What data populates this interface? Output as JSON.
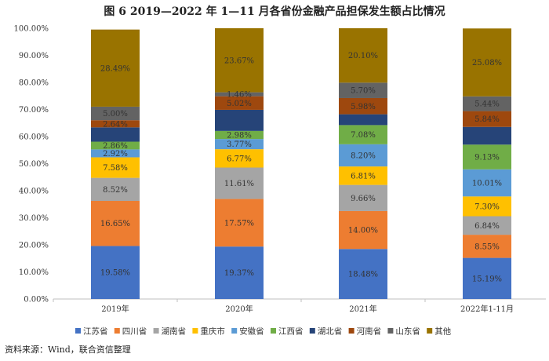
{
  "source": "资料来源：Wind，联合资信整理",
  "chart_data": {
    "type": "bar",
    "stacked": true,
    "title": "图 6   2019—2022 年 1—11 月各省份金融产品担保发生额占比情况",
    "categories": [
      "2019年",
      "2020年",
      "2021年",
      "2022年1-11月"
    ],
    "ylim": [
      0,
      100
    ],
    "yticks": [
      "0.00%",
      "10.00%",
      "20.00%",
      "30.00%",
      "40.00%",
      "50.00%",
      "60.00%",
      "70.00%",
      "80.00%",
      "90.00%",
      "100.00%"
    ],
    "grid": false,
    "legend": "bottom",
    "series": [
      {
        "name": "江苏省",
        "color": "#4472C4",
        "values": [
          19.58,
          19.37,
          18.48,
          15.19
        ],
        "labels": [
          "19.58%",
          "19.37%",
          "18.48%",
          "15.19%"
        ]
      },
      {
        "name": "四川省",
        "color": "#ED7D31",
        "values": [
          16.65,
          17.57,
          14.0,
          8.55
        ],
        "labels": [
          "16.65%",
          "17.57%",
          "14.00%",
          "8.55%"
        ]
      },
      {
        "name": "湖南省",
        "color": "#A5A5A5",
        "values": [
          8.52,
          11.61,
          9.66,
          6.84
        ],
        "labels": [
          "8.52%",
          "11.61%",
          "9.66%",
          "6.84%"
        ]
      },
      {
        "name": "重庆市",
        "color": "#FFC000",
        "values": [
          7.58,
          6.77,
          6.81,
          7.3
        ],
        "labels": [
          "7.58%",
          "6.77%",
          "6.81%",
          "7.30%"
        ]
      },
      {
        "name": "安徽省",
        "color": "#5B9BD5",
        "values": [
          2.92,
          3.77,
          8.2,
          10.01
        ],
        "labels": [
          "2.92%",
          "3.77%",
          "8.20%",
          "10.01%"
        ]
      },
      {
        "name": "江西省",
        "color": "#70AD47",
        "values": [
          2.86,
          2.98,
          7.08,
          9.13
        ],
        "labels": [
          "2.86%",
          "2.98%",
          "7.08%",
          "9.13%"
        ]
      },
      {
        "name": "湖北省",
        "color": "#264478",
        "values": [
          5.28,
          7.8,
          4.0,
          6.54
        ],
        "labels": [
          "",
          "",
          "",
          ""
        ]
      },
      {
        "name": "河南省",
        "color": "#9E480E",
        "values": [
          2.64,
          5.02,
          5.98,
          5.84
        ],
        "labels": [
          "2.64%",
          "5.02%",
          "5.98%",
          "5.84%"
        ]
      },
      {
        "name": "山东省",
        "color": "#636363",
        "values": [
          5.0,
          1.46,
          5.7,
          5.44
        ],
        "labels": [
          "5.00%",
          "1.46%",
          "5.70%",
          "5.44%"
        ]
      },
      {
        "name": "其他",
        "color": "#997300",
        "values": [
          28.49,
          23.67,
          20.1,
          25.08
        ],
        "labels": [
          "28.49%",
          "23.67%",
          "20.10%",
          "25.08%"
        ]
      }
    ]
  }
}
